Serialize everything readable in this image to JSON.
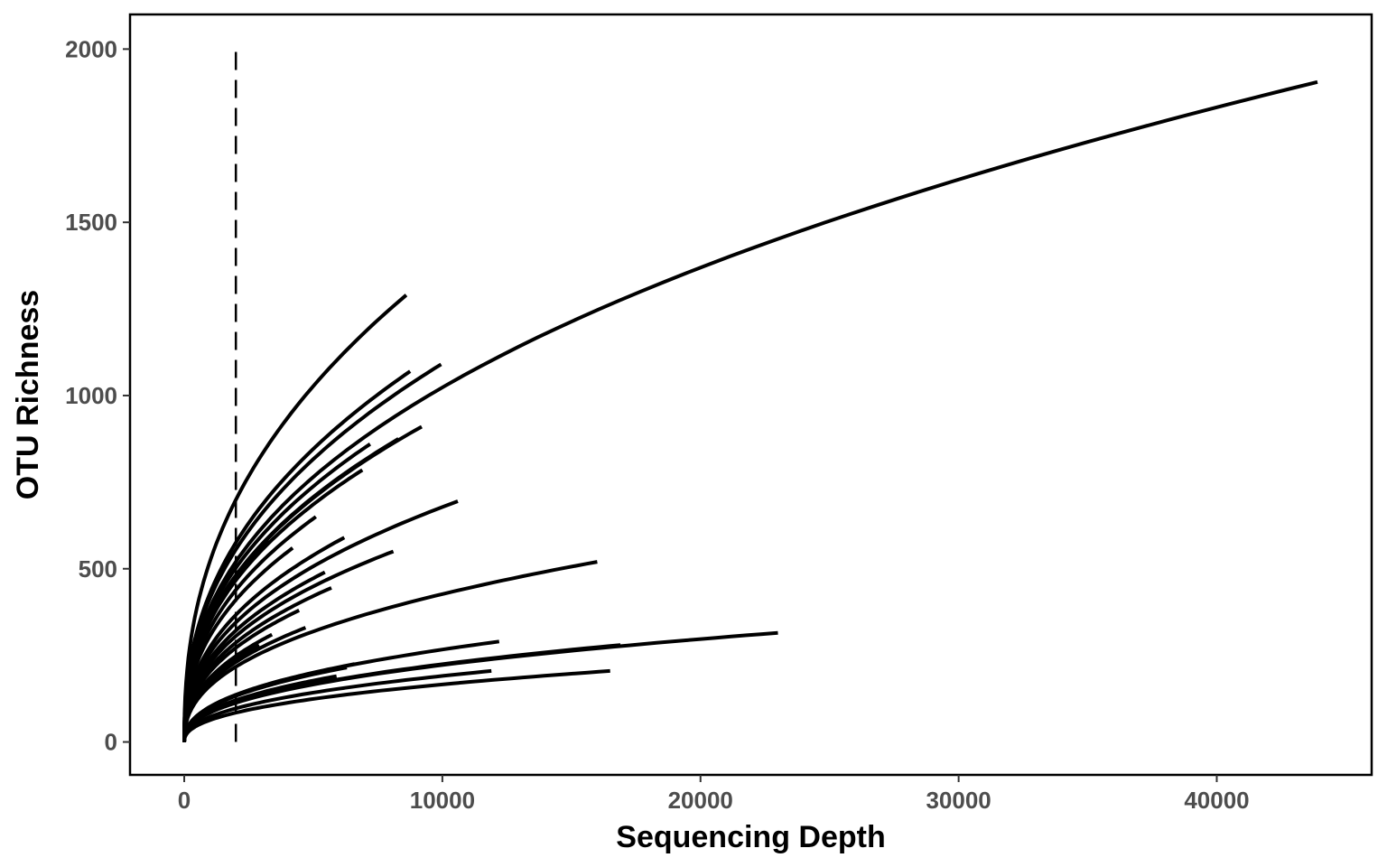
{
  "chart_data": {
    "type": "line",
    "xlabel": "Sequencing Depth",
    "ylabel": "OTU Richness",
    "xlim": [
      -2100,
      46000
    ],
    "ylim": [
      -95,
      2100
    ],
    "x_ticks": [
      0,
      10000,
      20000,
      30000,
      40000
    ],
    "y_ticks": [
      0,
      500,
      1000,
      1500,
      2000
    ],
    "grid": false,
    "legend": "none",
    "line_color": "#000000",
    "reference_line": {
      "x": 2000,
      "style": "dashed",
      "y_range": [
        0,
        2000
      ]
    },
    "series": [
      {
        "depth": 43900,
        "richness": 1905
      },
      {
        "depth": 8600,
        "richness": 1290
      },
      {
        "depth": 9950,
        "richness": 1090
      },
      {
        "depth": 8750,
        "richness": 1070
      },
      {
        "depth": 9200,
        "richness": 910
      },
      {
        "depth": 7200,
        "richness": 860
      },
      {
        "depth": 8300,
        "richness": 875
      },
      {
        "depth": 6900,
        "richness": 785
      },
      {
        "depth": 10600,
        "richness": 695
      },
      {
        "depth": 5100,
        "richness": 650
      },
      {
        "depth": 6200,
        "richness": 590
      },
      {
        "depth": 8100,
        "richness": 550
      },
      {
        "depth": 4200,
        "richness": 560
      },
      {
        "depth": 3300,
        "richness": 580
      },
      {
        "depth": 5450,
        "richness": 490
      },
      {
        "depth": 5700,
        "richness": 445
      },
      {
        "depth": 16000,
        "richness": 520
      },
      {
        "depth": 4450,
        "richness": 380
      },
      {
        "depth": 4700,
        "richness": 330
      },
      {
        "depth": 3400,
        "richness": 310
      },
      {
        "depth": 2900,
        "richness": 280
      },
      {
        "depth": 23000,
        "richness": 315
      },
      {
        "depth": 12200,
        "richness": 290
      },
      {
        "depth": 16900,
        "richness": 280
      },
      {
        "depth": 6600,
        "richness": 225
      },
      {
        "depth": 6300,
        "richness": 215
      },
      {
        "depth": 11900,
        "richness": 205
      },
      {
        "depth": 5900,
        "richness": 190
      },
      {
        "depth": 16500,
        "richness": 205
      }
    ]
  }
}
